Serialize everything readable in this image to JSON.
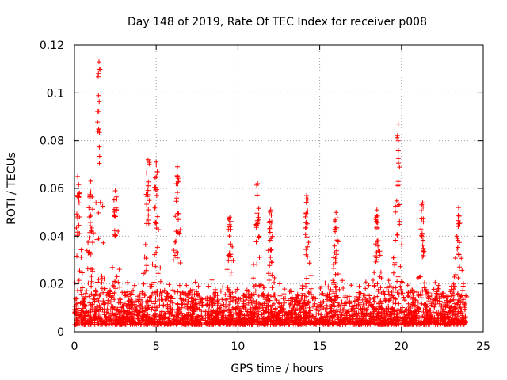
{
  "chart_data": {
    "type": "scatter",
    "title": "Day 148 of 2019, Rate Of TEC Index for receiver p008",
    "xlabel": "GPS time / hours",
    "ylabel": "ROTI / TECUs",
    "xlim": [
      0,
      25
    ],
    "ylim": [
      0,
      0.12
    ],
    "xticks": [
      0,
      5,
      10,
      15,
      20,
      25
    ],
    "xtick_labels": [
      "0",
      "5",
      "10",
      "15",
      "20",
      "25"
    ],
    "yticks": [
      0,
      0.02,
      0.04,
      0.06,
      0.08,
      0.1,
      0.12
    ],
    "ytick_labels": [
      "0",
      "0.02",
      "0.04",
      "0.06",
      "0.08",
      "0.1",
      "0.12"
    ],
    "grid": true,
    "marker": "+",
    "series_color": "#ff0000",
    "series": [
      {
        "name": "ROTI",
        "x_range_hours": [
          0,
          24
        ],
        "typical_floor": 0.003,
        "dense_band_max": 0.02,
        "gap_hours": [
          7.85,
          8.0
        ],
        "peaks": [
          {
            "x": 0.2,
            "y": 0.065
          },
          {
            "x": 1.0,
            "y": 0.063
          },
          {
            "x": 1.5,
            "y": 0.113
          },
          {
            "x": 2.5,
            "y": 0.059
          },
          {
            "x": 4.5,
            "y": 0.072
          },
          {
            "x": 5.0,
            "y": 0.071
          },
          {
            "x": 6.3,
            "y": 0.069
          },
          {
            "x": 9.5,
            "y": 0.048
          },
          {
            "x": 11.2,
            "y": 0.062
          },
          {
            "x": 12.0,
            "y": 0.051
          },
          {
            "x": 14.2,
            "y": 0.057
          },
          {
            "x": 16.0,
            "y": 0.05
          },
          {
            "x": 18.5,
            "y": 0.051
          },
          {
            "x": 19.8,
            "y": 0.087
          },
          {
            "x": 21.3,
            "y": 0.054
          },
          {
            "x": 23.5,
            "y": 0.052
          }
        ]
      }
    ]
  }
}
